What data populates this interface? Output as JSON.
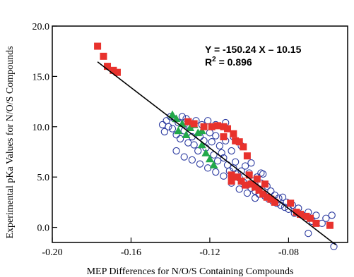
{
  "chart_data": {
    "type": "scatter",
    "xlabel": "MEP Differences for N/O/S Containing Compounds",
    "ylabel": "Experimental pKa Values for N/O/S Compounds",
    "xlim": [
      -0.2,
      -0.05
    ],
    "ylim": [
      -1.5,
      20.0
    ],
    "x_ticks": [
      -0.2,
      -0.16,
      -0.12,
      -0.08
    ],
    "x_tick_labels": [
      "-0.20",
      "-0.16",
      "-0.12",
      "-0.08"
    ],
    "y_ticks": [
      0.0,
      5.0,
      10.0,
      15.0,
      20.0
    ],
    "y_tick_labels": [
      "0.0",
      "5.0",
      "10.0",
      "15.0",
      "20.0"
    ],
    "grid": false,
    "annotation": {
      "equation": "Y = -150.24 X – 10.15",
      "r2_label": "R",
      "r2_sup": "2",
      "r2_value": " = 0.896"
    },
    "fit_line": {
      "slope": -150.24,
      "intercept": -10.15,
      "x_range": [
        -0.177,
        -0.056
      ]
    },
    "series": [
      {
        "marker": "square",
        "color": "#e8322d",
        "points": [
          [
            -0.177,
            18.0
          ],
          [
            -0.174,
            17.0
          ],
          [
            -0.172,
            16.0
          ],
          [
            -0.169,
            15.6
          ],
          [
            -0.167,
            15.4
          ],
          [
            -0.131,
            10.5
          ],
          [
            -0.128,
            10.3
          ],
          [
            -0.123,
            10.0
          ],
          [
            -0.119,
            10.0
          ],
          [
            -0.116,
            10.1
          ],
          [
            -0.113,
            10.0
          ],
          [
            -0.111,
            9.8
          ],
          [
            -0.108,
            9.3
          ],
          [
            -0.107,
            8.6
          ],
          [
            -0.105,
            8.5
          ],
          [
            -0.103,
            8.0
          ],
          [
            -0.101,
            7.1
          ],
          [
            -0.113,
            9.0
          ],
          [
            -0.109,
            5.2
          ],
          [
            -0.109,
            4.6
          ],
          [
            -0.106,
            5.0
          ],
          [
            -0.104,
            4.6
          ],
          [
            -0.102,
            4.2
          ],
          [
            -0.099,
            4.3
          ],
          [
            -0.097,
            4.0
          ],
          [
            -0.095,
            3.7
          ],
          [
            -0.093,
            3.3
          ],
          [
            -0.091,
            3.0
          ],
          [
            -0.089,
            2.8
          ],
          [
            -0.087,
            2.5
          ],
          [
            -0.1,
            5.2
          ],
          [
            -0.096,
            4.8
          ],
          [
            -0.092,
            4.3
          ],
          [
            -0.079,
            2.4
          ],
          [
            -0.076,
            1.5
          ],
          [
            -0.074,
            1.3
          ],
          [
            -0.071,
            1.1
          ],
          [
            -0.069,
            0.9
          ],
          [
            -0.066,
            0.4
          ],
          [
            -0.059,
            0.2
          ]
        ]
      },
      {
        "marker": "triangle",
        "color": "#22a84a",
        "points": [
          [
            -0.139,
            11.2
          ],
          [
            -0.137,
            10.8
          ],
          [
            -0.136,
            9.6
          ],
          [
            -0.134,
            10.3
          ],
          [
            -0.132,
            9.2
          ],
          [
            -0.13,
            9.9
          ],
          [
            -0.128,
            10.2
          ],
          [
            -0.126,
            9.4
          ],
          [
            -0.124,
            8.2
          ],
          [
            -0.122,
            7.4
          ],
          [
            -0.12,
            6.8
          ],
          [
            -0.118,
            6.2
          ],
          [
            -0.124,
            9.6
          ]
        ]
      },
      {
        "marker": "circle",
        "color": "#2b3aa0",
        "points": [
          [
            -0.144,
            10.2
          ],
          [
            -0.143,
            9.5
          ],
          [
            -0.142,
            10.6
          ],
          [
            -0.141,
            10.0
          ],
          [
            -0.14,
            11.0
          ],
          [
            -0.139,
            9.8
          ],
          [
            -0.138,
            10.8
          ],
          [
            -0.137,
            9.2
          ],
          [
            -0.136,
            10.4
          ],
          [
            -0.135,
            8.8
          ],
          [
            -0.134,
            11.0
          ],
          [
            -0.133,
            9.6
          ],
          [
            -0.132,
            10.8
          ],
          [
            -0.131,
            8.4
          ],
          [
            -0.13,
            10.0
          ],
          [
            -0.129,
            9.0
          ],
          [
            -0.128,
            8.2
          ],
          [
            -0.127,
            10.6
          ],
          [
            -0.126,
            7.6
          ],
          [
            -0.125,
            9.0
          ],
          [
            -0.124,
            10.2
          ],
          [
            -0.123,
            8.6
          ],
          [
            -0.122,
            7.9
          ],
          [
            -0.121,
            10.6
          ],
          [
            -0.12,
            9.4
          ],
          [
            -0.119,
            8.5
          ],
          [
            -0.118,
            7.2
          ],
          [
            -0.117,
            9.1
          ],
          [
            -0.116,
            6.6
          ],
          [
            -0.115,
            8.1
          ],
          [
            -0.114,
            7.4
          ],
          [
            -0.113,
            6.9
          ],
          [
            -0.112,
            8.6
          ],
          [
            -0.111,
            6.2
          ],
          [
            -0.11,
            5.6
          ],
          [
            -0.109,
            7.6
          ],
          [
            -0.108,
            5.9
          ],
          [
            -0.107,
            6.5
          ],
          [
            -0.106,
            5.3
          ],
          [
            -0.105,
            4.9
          ],
          [
            -0.104,
            5.6
          ],
          [
            -0.103,
            4.5
          ],
          [
            -0.102,
            6.1
          ],
          [
            -0.101,
            4.2
          ],
          [
            -0.1,
            5.4
          ],
          [
            -0.099,
            3.9
          ],
          [
            -0.098,
            4.6
          ],
          [
            -0.097,
            3.6
          ],
          [
            -0.096,
            5.0
          ],
          [
            -0.095,
            3.3
          ],
          [
            -0.094,
            4.4
          ],
          [
            -0.093,
            5.3
          ],
          [
            -0.092,
            3.1
          ],
          [
            -0.091,
            4.1
          ],
          [
            -0.09,
            2.8
          ],
          [
            -0.089,
            3.6
          ],
          [
            -0.088,
            2.6
          ],
          [
            -0.087,
            3.2
          ],
          [
            -0.086,
            2.4
          ],
          [
            -0.085,
            2.9
          ],
          [
            -0.084,
            2.2
          ],
          [
            -0.083,
            3.0
          ],
          [
            -0.082,
            2.0
          ],
          [
            -0.081,
            2.5
          ],
          [
            -0.08,
            1.8
          ],
          [
            -0.078,
            2.2
          ],
          [
            -0.077,
            1.4
          ],
          [
            -0.075,
            1.9
          ],
          [
            -0.073,
            1.2
          ],
          [
            -0.071,
            0.9
          ],
          [
            -0.07,
            1.5
          ],
          [
            -0.068,
            0.6
          ],
          [
            -0.066,
            1.2
          ],
          [
            -0.063,
            0.4
          ],
          [
            -0.061,
            0.9
          ],
          [
            -0.058,
            1.2
          ],
          [
            -0.057,
            -1.9
          ],
          [
            -0.07,
            -0.6
          ],
          [
            -0.137,
            7.6
          ],
          [
            -0.133,
            7.0
          ],
          [
            -0.129,
            6.7
          ],
          [
            -0.125,
            6.3
          ],
          [
            -0.121,
            5.9
          ],
          [
            -0.117,
            5.5
          ],
          [
            -0.113,
            5.1
          ],
          [
            -0.109,
            4.4
          ],
          [
            -0.105,
            3.8
          ],
          [
            -0.101,
            3.4
          ],
          [
            -0.097,
            2.9
          ],
          [
            -0.117,
            10.2
          ],
          [
            -0.112,
            10.4
          ],
          [
            -0.108,
            9.0
          ],
          [
            -0.104,
            8.1
          ],
          [
            -0.099,
            6.4
          ],
          [
            -0.094,
            5.4
          ]
        ]
      }
    ]
  }
}
